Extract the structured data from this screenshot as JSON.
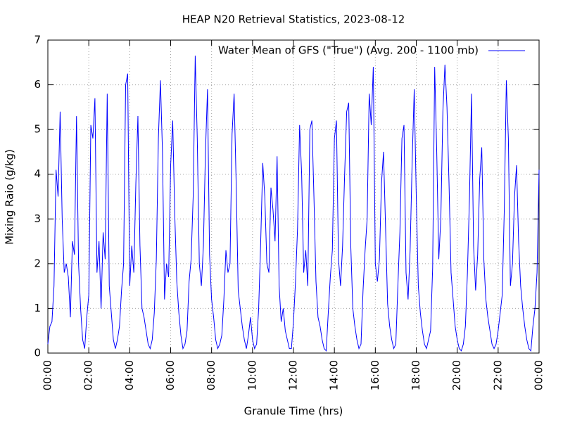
{
  "chart_data": {
    "type": "line",
    "title": "HEAP N20 Retrieval Statistics, 2023-08-12",
    "xlabel": "Granule Time (hrs)",
    "ylabel": "Mixing Raio (g/kg)",
    "xlim": [
      0,
      24
    ],
    "ylim": [
      0,
      7
    ],
    "xticks": [
      {
        "value": 0,
        "label": "00:00"
      },
      {
        "value": 2,
        "label": "02:00"
      },
      {
        "value": 4,
        "label": "04:00"
      },
      {
        "value": 6,
        "label": "06:00"
      },
      {
        "value": 8,
        "label": "08:00"
      },
      {
        "value": 10,
        "label": "10:00"
      },
      {
        "value": 12,
        "label": "12:00"
      },
      {
        "value": 14,
        "label": "14:00"
      },
      {
        "value": 16,
        "label": "16:00"
      },
      {
        "value": 18,
        "label": "18:00"
      },
      {
        "value": 20,
        "label": "20:00"
      },
      {
        "value": 22,
        "label": "22:00"
      },
      {
        "value": 24,
        "label": "00:00"
      }
    ],
    "yticks": [
      0,
      1,
      2,
      3,
      4,
      5,
      6,
      7
    ],
    "grid": true,
    "legend": "upper right",
    "x": [
      0,
      0.1,
      0.2,
      0.3,
      0.4,
      0.5,
      0.6,
      0.7,
      0.8,
      0.9,
      1,
      1.1,
      1.2,
      1.3,
      1.4,
      1.5,
      1.6,
      1.7,
      1.8,
      1.9,
      2,
      2.1,
      2.2,
      2.3,
      2.4,
      2.5,
      2.6,
      2.7,
      2.8,
      2.9,
      3,
      3.1,
      3.2,
      3.3,
      3.4,
      3.5,
      3.6,
      3.7,
      3.8,
      3.9,
      4,
      4.1,
      4.2,
      4.3,
      4.4,
      4.5,
      4.6,
      4.7,
      4.8,
      4.9,
      5,
      5.1,
      5.2,
      5.3,
      5.4,
      5.5,
      5.6,
      5.7,
      5.8,
      5.9,
      6,
      6.1,
      6.2,
      6.3,
      6.4,
      6.5,
      6.6,
      6.7,
      6.8,
      6.9,
      7,
      7.1,
      7.2,
      7.3,
      7.4,
      7.5,
      7.6,
      7.7,
      7.8,
      7.9,
      8,
      8.1,
      8.2,
      8.3,
      8.4,
      8.5,
      8.6,
      8.7,
      8.8,
      8.9,
      9,
      9.1,
      9.2,
      9.3,
      9.4,
      9.5,
      9.6,
      9.7,
      9.8,
      9.9,
      10,
      10.1,
      10.2,
      10.3,
      10.4,
      10.5,
      10.6,
      10.7,
      10.8,
      10.9,
      11,
      11.1,
      11.2,
      11.3,
      11.4,
      11.5,
      11.6,
      11.7,
      11.8,
      11.9,
      12,
      12.1,
      12.2,
      12.3,
      12.4,
      12.5,
      12.6,
      12.7,
      12.8,
      12.9,
      13,
      13.1,
      13.2,
      13.3,
      13.4,
      13.5,
      13.6,
      13.7,
      13.8,
      13.9,
      14,
      14.1,
      14.2,
      14.3,
      14.4,
      14.5,
      14.6,
      14.7,
      14.8,
      14.9,
      15,
      15.1,
      15.2,
      15.3,
      15.4,
      15.5,
      15.6,
      15.7,
      15.8,
      15.9,
      16,
      16.1,
      16.2,
      16.3,
      16.4,
      16.5,
      16.6,
      16.7,
      16.8,
      16.9,
      17,
      17.1,
      17.2,
      17.3,
      17.4,
      17.5,
      17.6,
      17.7,
      17.8,
      17.9,
      18,
      18.1,
      18.2,
      18.3,
      18.4,
      18.5,
      18.6,
      18.7,
      18.8,
      18.9,
      19,
      19.1,
      19.2,
      19.3,
      19.4,
      19.5,
      19.6,
      19.7,
      19.8,
      19.9,
      20,
      20.1,
      20.2,
      20.3,
      20.4,
      20.5,
      20.6,
      20.7,
      20.8,
      20.9,
      21,
      21.1,
      21.2,
      21.3,
      21.4,
      21.5,
      21.6,
      21.7,
      21.8,
      21.9,
      22,
      22.1,
      22.2,
      22.3,
      22.4,
      22.5,
      22.6,
      22.7,
      22.8,
      22.9,
      23,
      23.1,
      23.2,
      23.3,
      23.4,
      23.5,
      23.6,
      23.7,
      23.8,
      23.9,
      24
    ],
    "series": [
      {
        "name": "Water Mean of GFS (\"True\") (Avg. 200 - 1100 mb)",
        "color": "#0000ff",
        "values": [
          0.2,
          0.6,
          0.7,
          1.5,
          4.1,
          3.5,
          5.4,
          3.0,
          1.8,
          2.0,
          1.7,
          0.8,
          2.5,
          2.2,
          5.3,
          2.0,
          1.0,
          0.3,
          0.1,
          0.8,
          1.3,
          5.1,
          4.8,
          5.7,
          1.8,
          2.5,
          1.0,
          2.7,
          2.1,
          5.8,
          1.5,
          0.9,
          0.3,
          0.1,
          0.3,
          0.6,
          1.4,
          2.0,
          6.0,
          6.25,
          1.5,
          2.4,
          1.8,
          3.8,
          5.3,
          2.4,
          1.0,
          0.8,
          0.5,
          0.2,
          0.1,
          0.3,
          0.9,
          2.1,
          4.8,
          6.1,
          4.5,
          1.2,
          2.0,
          1.7,
          4.2,
          5.2,
          3.1,
          1.6,
          0.9,
          0.4,
          0.1,
          0.2,
          0.5,
          1.6,
          2.1,
          3.5,
          6.65,
          4.8,
          2.0,
          1.5,
          2.4,
          4.5,
          5.9,
          2.2,
          1.2,
          0.8,
          0.3,
          0.1,
          0.2,
          0.4,
          1.2,
          2.3,
          1.8,
          2.0,
          4.9,
          5.8,
          3.8,
          1.4,
          1.0,
          0.6,
          0.3,
          0.1,
          0.4,
          0.8,
          0.3,
          0.1,
          0.2,
          1.0,
          2.5,
          4.25,
          3.5,
          2.0,
          1.8,
          3.7,
          3.2,
          2.5,
          4.4,
          1.5,
          0.7,
          1.0,
          0.5,
          0.3,
          0.1,
          0.1,
          0.7,
          1.6,
          2.8,
          5.1,
          4.0,
          1.8,
          2.3,
          1.5,
          5.0,
          5.2,
          3.5,
          1.6,
          0.8,
          0.6,
          0.3,
          0.1,
          0.05,
          0.9,
          1.7,
          2.3,
          4.8,
          5.2,
          2.1,
          1.5,
          2.4,
          4.0,
          5.4,
          5.6,
          2.4,
          1.0,
          0.6,
          0.3,
          0.1,
          0.2,
          1.4,
          2.3,
          3.0,
          5.8,
          5.1,
          6.4,
          2.0,
          1.6,
          2.1,
          3.8,
          4.5,
          2.8,
          1.1,
          0.6,
          0.3,
          0.1,
          0.2,
          1.5,
          2.7,
          4.8,
          5.1,
          1.8,
          1.2,
          2.3,
          4.3,
          5.9,
          3.5,
          1.5,
          0.9,
          0.5,
          0.2,
          0.1,
          0.3,
          0.5,
          1.9,
          6.4,
          4.5,
          2.1,
          3.0,
          5.4,
          6.45,
          5.5,
          3.8,
          1.8,
          1.2,
          0.6,
          0.3,
          0.1,
          0.05,
          0.2,
          0.6,
          1.8,
          3.5,
          5.8,
          2.4,
          1.4,
          2.2,
          3.9,
          4.6,
          2.1,
          1.2,
          0.8,
          0.5,
          0.2,
          0.1,
          0.2,
          0.5,
          0.9,
          1.3,
          3.2,
          6.1,
          4.8,
          1.5,
          2.0,
          3.5,
          4.2,
          2.5,
          1.5,
          1.0,
          0.6,
          0.3,
          0.1,
          0.05,
          0.6,
          1.0,
          1.8,
          4.1
        ]
      }
    ]
  }
}
